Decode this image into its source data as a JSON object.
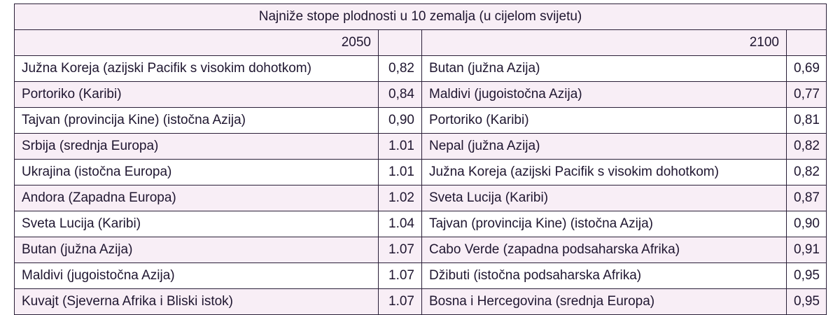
{
  "table": {
    "title": "Najniže stope plodnosti u 10 zemalja (u cijelom svijetu)",
    "year_left": "2050",
    "year_right": "2100",
    "rows": [
      {
        "left_country": "Južna Koreja (azijski Pacifik s visokim dohotkom)",
        "left_value": "0,82",
        "right_country": "Butan (južna Azija)",
        "right_value": "0,69"
      },
      {
        "left_country": "Portoriko (Karibi)",
        "left_value": "0,84",
        "right_country": "Maldivi (jugoistočna Azija)",
        "right_value": "0,77"
      },
      {
        "left_country": "Tajvan (provincija Kine) (istočna Azija)",
        "left_value": "0,90",
        "right_country": "Portoriko (Karibi)",
        "right_value": "0,81"
      },
      {
        "left_country": "Srbija (srednja Europa)",
        "left_value": "1.01",
        "right_country": "Nepal (južna Azija)",
        "right_value": "0,82"
      },
      {
        "left_country": "Ukrajina (istočna Europa)",
        "left_value": "1.01",
        "right_country": "Južna Koreja (azijski Pacifik s visokim dohotkom)",
        "right_value": "0,82"
      },
      {
        "left_country": "Andora (Zapadna Europa)",
        "left_value": "1.02",
        "right_country": "Sveta Lucija (Karibi)",
        "right_value": "0,87"
      },
      {
        "left_country": "Sveta Lucija (Karibi)",
        "left_value": "1.04",
        "right_country": "Tajvan (provincija Kine) (istočna Azija)",
        "right_value": "0,90"
      },
      {
        "left_country": "Butan (južna Azija)",
        "left_value": "1.07",
        "right_country": "Cabo Verde (zapadna podsaharska Afrika)",
        "right_value": "0,91"
      },
      {
        "left_country": "Maldivi (jugoistočna Azija)",
        "left_value": "1.07",
        "right_country": "Džibuti (istočna podsaharska Afrika)",
        "right_value": "0,95"
      },
      {
        "left_country": "Kuvajt (Sjeverna Afrika i Bliski istok)",
        "left_value": "1.07",
        "right_country": "Bosna i Hercegovina (srednja Europa)",
        "right_value": "0,95"
      }
    ]
  }
}
